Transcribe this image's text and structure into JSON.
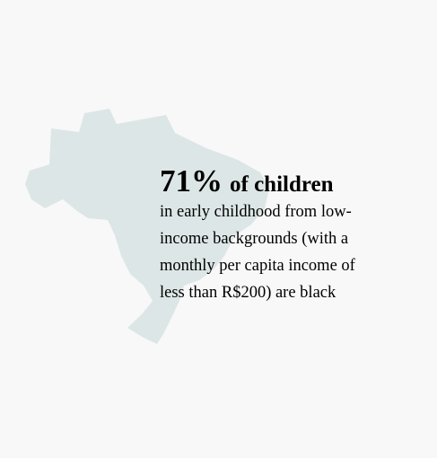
{
  "headline": {
    "figure": "71%",
    "text": "of children"
  },
  "body": {
    "lines": [
      "in early childhood from low-",
      "income backgrounds (with a",
      "monthly per capita income of",
      "less than R$200) are black"
    ]
  }
}
